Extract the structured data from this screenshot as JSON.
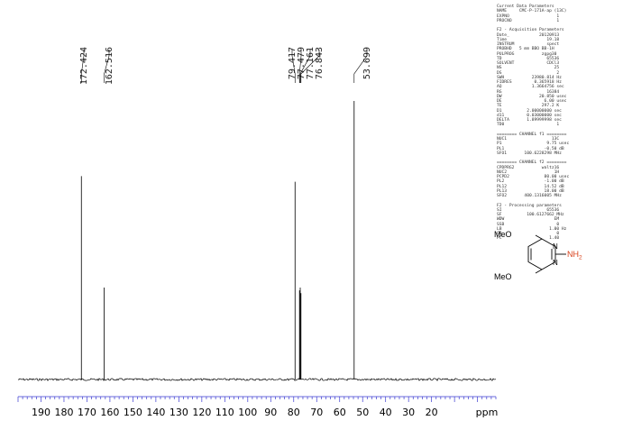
{
  "chart_data": {
    "type": "line",
    "title": "",
    "xlabel": "ppm",
    "ylabel": "",
    "xlim": [
      200,
      -8
    ],
    "x_reversed": true,
    "xticks": [
      190,
      180,
      170,
      160,
      150,
      140,
      130,
      120,
      110,
      100,
      90,
      80,
      70,
      60,
      50,
      40,
      30,
      20
    ],
    "grid": false,
    "legend": "none",
    "peaks": [
      {
        "ppm": 172.424,
        "intensity": 0.73
      },
      {
        "ppm": 162.516,
        "intensity": 0.33
      },
      {
        "ppm": 79.417,
        "intensity": 0.71
      },
      {
        "ppm": 77.479,
        "intensity": 0.32
      },
      {
        "ppm": 77.161,
        "intensity": 0.33
      },
      {
        "ppm": 76.843,
        "intensity": 0.31
      },
      {
        "ppm": 53.699,
        "intensity": 1.0
      }
    ],
    "peak_labels": [
      "172.424",
      "162.516",
      "79.417",
      "77.479",
      "77.161",
      "76.843",
      "53.699"
    ]
  },
  "parameters": {
    "lines": [
      "Current Data Parameters",
      "NAME     CMC-P-171A-ap (13C)",
      "EXPNO                   1",
      "PROCNO                  1",
      "",
      "F2 - Acquisition Parameters",
      "Date_            20120913",
      "Time                19.18",
      "INSTRUM             spect",
      "PROBHD   5 mm BBO BB-1H",
      "PULPROG           zgpg30",
      "TD                  65536",
      "SOLVENT             CDCl3",
      "NS                     25",
      "DS                      2",
      "SWH           23980.814 Hz",
      "FIDRES         0.365918 Hz",
      "AQ            1.3664756 sec",
      "RG                  16384",
      "DW               20.850 usec",
      "DE                 6.00 usec",
      "TE                297.2 K",
      "D1          2.00000000 sec",
      "d11         0.03000000 sec",
      "DELTA       1.89999998 sec",
      "TD0                     1",
      "",
      "======== CHANNEL f1 ========",
      "NUC1                  13C",
      "P1                  9.75 usec",
      "PL1                -0.50 dB",
      "SFO1       100.6228298 MHz",
      "",
      "======== CHANNEL f2 ========",
      "CPDPRG2           waltz16",
      "NUC2                   1H",
      "PCPD2              80.00 usec",
      "PL2                -1.00 dB",
      "PL12               14.52 dB",
      "PL13               18.00 dB",
      "SFO2       400.1316005 MHz",
      "",
      "F2 - Processing parameters",
      "SI                  65536",
      "SF          100.6127662 MHz",
      "WDW                    EM",
      "SSB                     0",
      "LB                   1.00 Hz",
      "GB                      0",
      "PC                   1.40"
    ]
  },
  "structure": {
    "meo_top": "MeO",
    "meo_bottom": "MeO",
    "nh2": "NH",
    "nh2_sub": "2",
    "n_atom": "N"
  },
  "colors": {
    "nh2": "#d8401a",
    "axis": "#3a3ad0",
    "baseline": "#000000"
  }
}
